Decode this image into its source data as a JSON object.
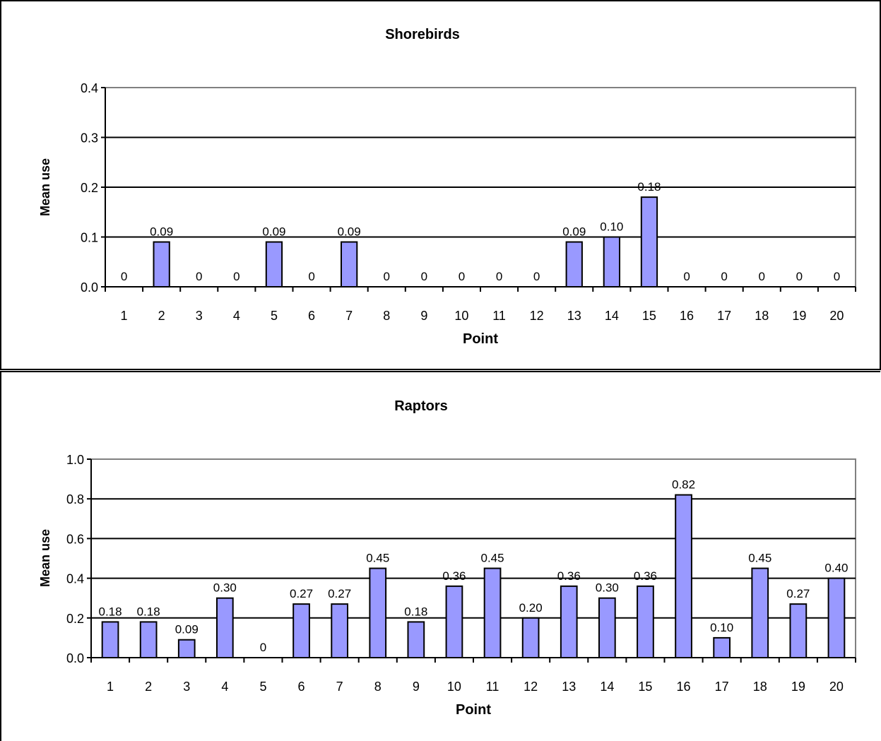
{
  "colors": {
    "bar_fill": "#9999ff",
    "bar_stroke": "#000000",
    "gridline": "#000000",
    "plot_border": "#808080"
  },
  "chart_data": [
    {
      "type": "bar",
      "title": "Shorebirds",
      "xlabel": "Point",
      "ylabel": "Mean use",
      "categories": [
        "1",
        "2",
        "3",
        "4",
        "5",
        "6",
        "7",
        "8",
        "9",
        "10",
        "11",
        "12",
        "13",
        "14",
        "15",
        "16",
        "17",
        "18",
        "19",
        "20"
      ],
      "values": [
        0,
        0.09,
        0,
        0,
        0.09,
        0,
        0.09,
        0,
        0,
        0,
        0,
        0,
        0.09,
        0.1,
        0.18,
        0,
        0,
        0,
        0,
        0
      ],
      "data_labels": [
        "0",
        "0.09",
        "0",
        "0",
        "0.09",
        "0",
        "0.09",
        "0",
        "0",
        "0",
        "0",
        "0",
        "0.09",
        "0.10",
        "0.18",
        "0",
        "0",
        "0",
        "0",
        "0"
      ],
      "ylim": [
        0,
        0.4
      ],
      "yticks": [
        0,
        0.1,
        0.2,
        0.3,
        0.4
      ],
      "ytick_labels": [
        "0.0",
        "0.1",
        "0.2",
        "0.3",
        "0.4"
      ],
      "grid": "horizontal"
    },
    {
      "type": "bar",
      "title": "Raptors",
      "xlabel": "Point",
      "ylabel": "Mean use",
      "categories": [
        "1",
        "2",
        "3",
        "4",
        "5",
        "6",
        "7",
        "8",
        "9",
        "10",
        "11",
        "12",
        "13",
        "14",
        "15",
        "16",
        "17",
        "18",
        "19",
        "20"
      ],
      "values": [
        0.18,
        0.18,
        0.09,
        0.3,
        0,
        0.27,
        0.27,
        0.45,
        0.18,
        0.36,
        0.45,
        0.2,
        0.36,
        0.3,
        0.36,
        0.82,
        0.1,
        0.45,
        0.27,
        0.4
      ],
      "data_labels": [
        "0.18",
        "0.18",
        "0.09",
        "0.30",
        "0",
        "0.27",
        "0.27",
        "0.45",
        "0.18",
        "0.36",
        "0.45",
        "0.20",
        "0.36",
        "0.30",
        "0.36",
        "0.82",
        "0.10",
        "0.45",
        "0.27",
        "0.40"
      ],
      "ylim": [
        0,
        1.0
      ],
      "yticks": [
        0,
        0.2,
        0.4,
        0.6,
        0.8,
        1.0
      ],
      "ytick_labels": [
        "0.0",
        "0.2",
        "0.4",
        "0.6",
        "0.8",
        "1.0"
      ],
      "grid": "horizontal"
    }
  ]
}
